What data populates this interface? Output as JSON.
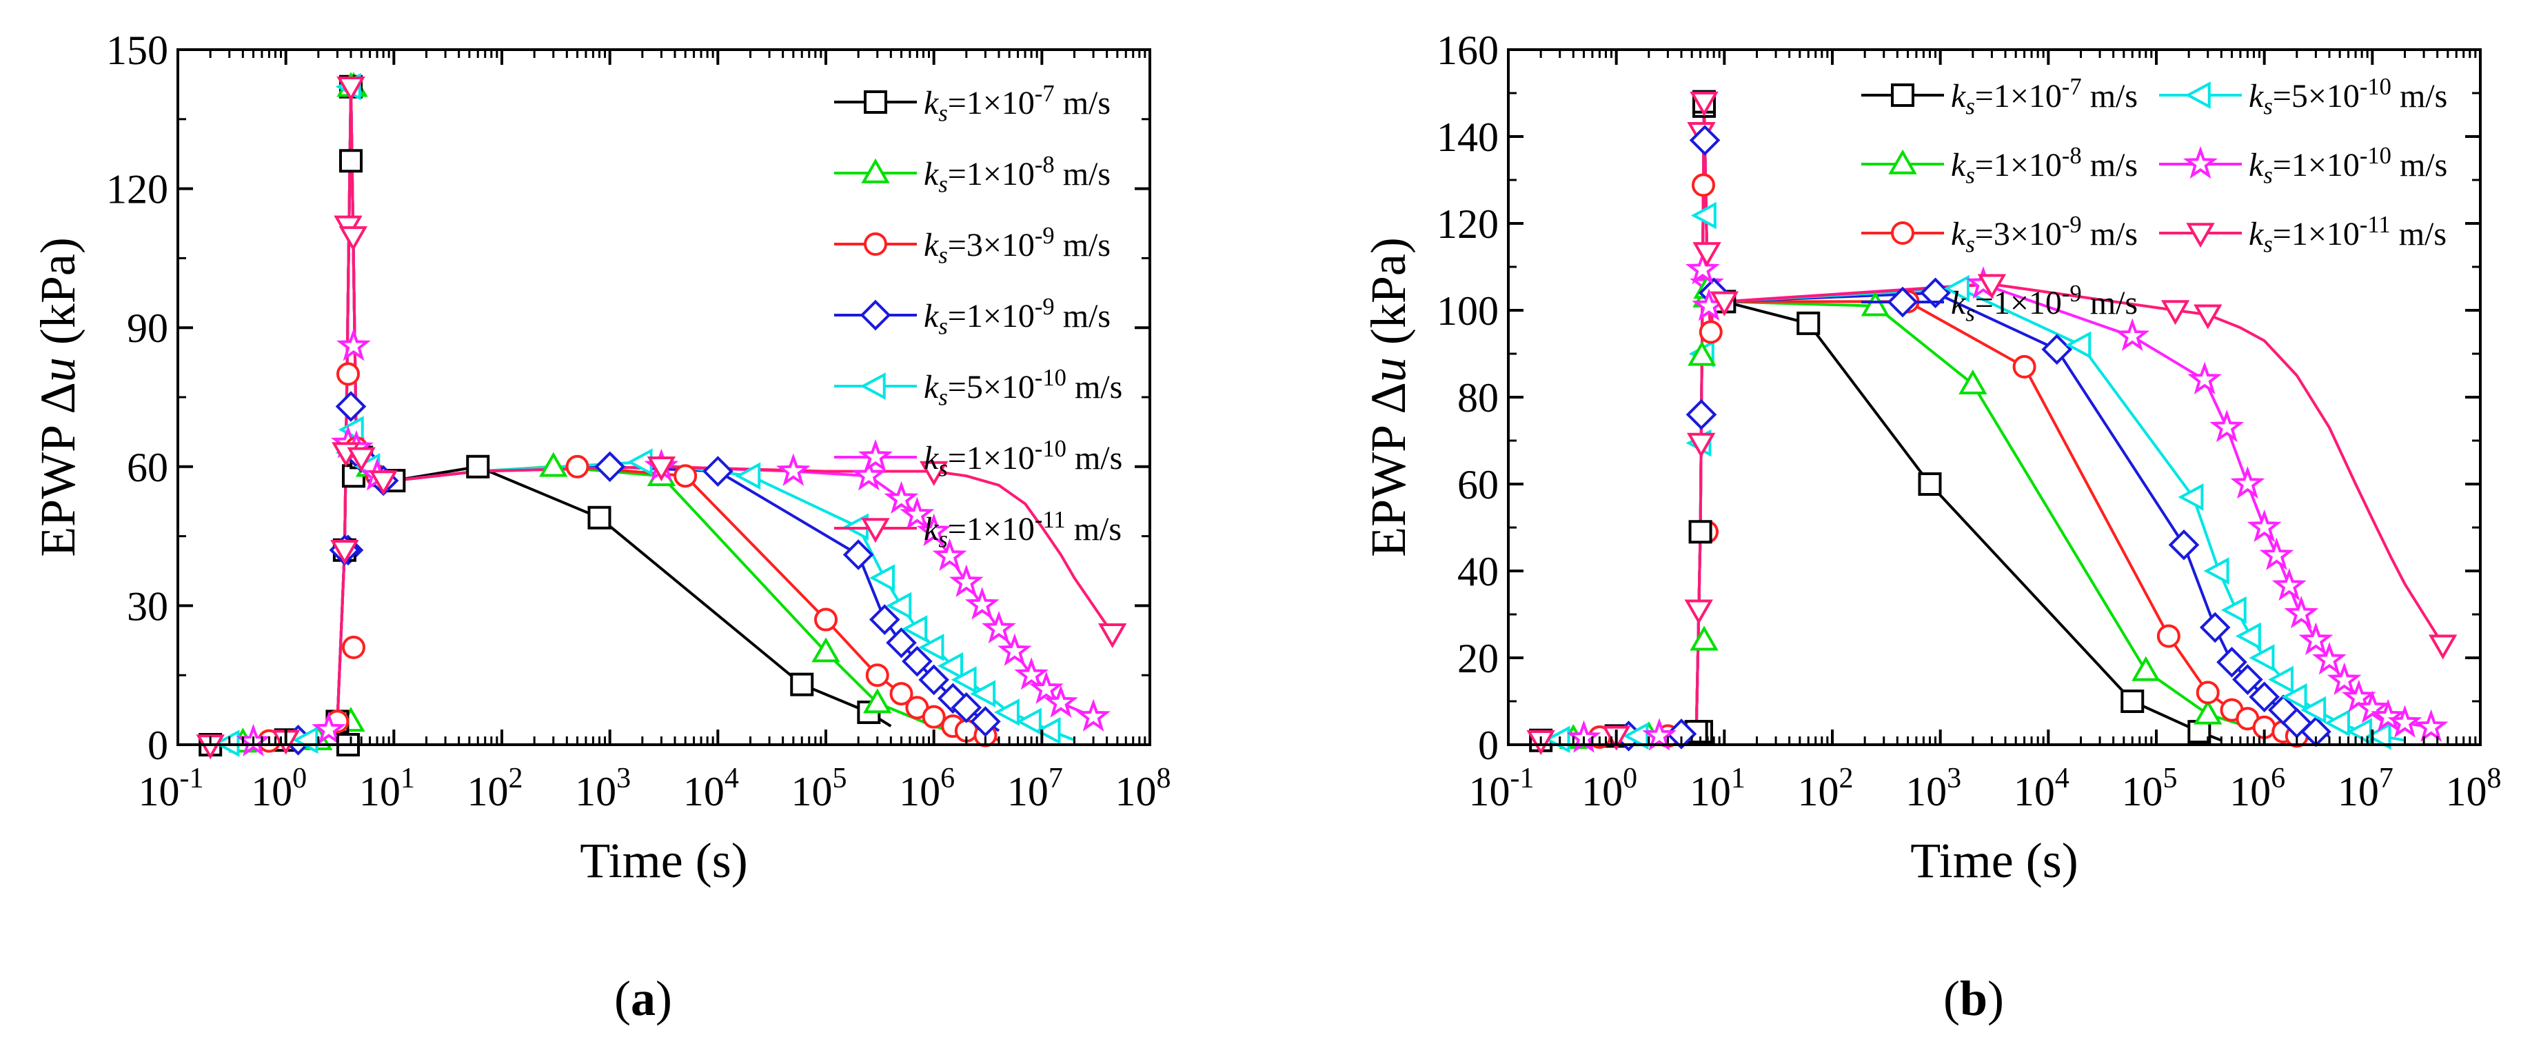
{
  "chart_data": [
    {
      "type": "line",
      "panel_label": "(a)",
      "panel_letter": "a",
      "xlabel": "Time (s)",
      "ylabel": "EPWP Δu (kPa)",
      "xscale": "log",
      "xlim_exp": [
        -1,
        8
      ],
      "ylim": [
        0,
        150
      ],
      "yticks": [
        0,
        30,
        60,
        90,
        120,
        150
      ],
      "legend_position": "top-right",
      "legend_columns": 1,
      "series": [
        {
          "name": "k_s=1×10^-7 m/s",
          "base": "1×10",
          "exp": "-7",
          "color": "#000000",
          "marker": "square",
          "x": [
            0.2,
            0.4,
            1,
            2,
            3,
            3.5,
            4,
            4.5,
            5,
            6,
            7,
            8,
            10,
            60,
            800,
            60000,
            250000,
            400000
          ],
          "y": [
            0,
            0.5,
            1,
            1,
            5,
            42,
            142,
            64,
            62,
            60,
            58,
            57,
            57,
            60,
            49,
            13,
            7,
            4
          ],
          "marker_x": [
            0.2,
            1,
            3,
            3.5,
            4,
            5,
            10,
            60,
            800,
            60000,
            250000
          ]
        },
        {
          "name": "k_s=1×10^-8 m/s",
          "base": "1×10",
          "exp": "-8",
          "color": "#00e000",
          "marker": "triangle-up",
          "x": [
            0.2,
            0.4,
            1,
            2,
            3,
            3.5,
            4,
            4.5,
            5,
            6,
            7,
            8,
            10,
            60,
            300,
            3000,
            100000,
            300000,
            1000000,
            2000000,
            3000000
          ],
          "y": [
            0,
            0.5,
            1,
            1,
            5,
            42,
            142,
            64,
            62,
            60,
            58,
            57,
            57,
            59,
            60,
            58,
            20,
            9,
            4,
            2,
            1
          ],
          "marker_x": [
            0.4,
            2,
            4,
            6,
            300,
            3000,
            100000,
            300000
          ]
        },
        {
          "name": "k_s=3×10^-9 m/s",
          "base": "3×10",
          "exp": "-9",
          "color": "#ff2020",
          "marker": "circle",
          "x": [
            0.2,
            0.4,
            1,
            2,
            3,
            3.5,
            4,
            4.5,
            5,
            6,
            7,
            8,
            10,
            60,
            500,
            5000,
            100000,
            300000,
            500000,
            700000,
            1000000,
            1500000,
            2000000,
            3000000,
            4000000
          ],
          "y": [
            0,
            0.5,
            1,
            1,
            5,
            42,
            142,
            64,
            62,
            60,
            58,
            57,
            57,
            59,
            60,
            58,
            27,
            15,
            11,
            8,
            6,
            4,
            3,
            2,
            1
          ],
          "marker_x": [
            0.7,
            3,
            4.5,
            7,
            500,
            5000,
            100000,
            300000,
            500000,
            700000,
            1000000,
            1500000,
            2000000,
            3000000
          ]
        },
        {
          "name": "k_s=1×10^-9 m/s",
          "base": "1×10",
          "exp": "-9",
          "color": "#1a1adc",
          "marker": "diamond",
          "x": [
            0.2,
            0.4,
            1,
            2,
            3,
            3.5,
            4,
            4.5,
            5,
            6,
            7,
            8,
            10,
            60,
            1000,
            10000,
            200000,
            350000,
            500000,
            700000,
            1000000,
            1500000,
            2000000,
            3000000,
            4000000
          ],
          "y": [
            0,
            0.5,
            1,
            1,
            5,
            42,
            142,
            64,
            62,
            60,
            58,
            57,
            57,
            59,
            60,
            59,
            41,
            27,
            22,
            18,
            14,
            10,
            8,
            5,
            3
          ],
          "marker_x": [
            1.3,
            3.5,
            5,
            8,
            1000,
            10000,
            200000,
            350000,
            500000,
            700000,
            1000000,
            1500000,
            2000000,
            3000000
          ]
        },
        {
          "name": "k_s=5×10^-10 m/s",
          "base": "5×10",
          "exp": "-10",
          "color": "#00e5e5",
          "marker": "triangle-left",
          "x": [
            0.2,
            0.4,
            1,
            2,
            3,
            3.5,
            4,
            4.5,
            5,
            6,
            7,
            8,
            10,
            60,
            2000,
            20000,
            200000,
            350000,
            500000,
            700000,
            1000000,
            1500000,
            2000000,
            3000000,
            5000000,
            8000000,
            12000000,
            20000000
          ],
          "y": [
            0,
            0.5,
            1,
            1,
            5,
            42,
            142,
            64,
            62,
            60,
            58,
            57,
            57,
            59,
            61,
            58,
            47,
            36,
            30,
            25,
            21,
            17,
            14,
            11,
            7,
            5,
            3,
            1
          ],
          "marker_x": [
            0.3,
            1.6,
            4,
            6,
            2000,
            20000,
            200000,
            350000,
            500000,
            700000,
            1000000,
            1500000,
            2000000,
            3000000,
            5000000,
            8000000,
            12000000
          ]
        },
        {
          "name": "k_s=1×10^-10 m/s",
          "base": "1×10",
          "exp": "-10",
          "color": "#ff22ff",
          "marker": "star",
          "x": [
            0.2,
            0.4,
            1,
            2,
            3,
            3.5,
            4,
            4.5,
            5,
            6,
            7,
            8,
            10,
            60,
            3000,
            50000,
            250000,
            500000,
            1000000,
            2000000,
            4000000,
            8000000,
            15000000,
            30000000
          ],
          "y": [
            0,
            0.5,
            1,
            1,
            5,
            42,
            142,
            64,
            62,
            60,
            58,
            57,
            57,
            59,
            60,
            59,
            58,
            53,
            46,
            35,
            25,
            15,
            9,
            6
          ],
          "marker_x": [
            0.5,
            2.5,
            4.5,
            7,
            3000,
            50000,
            250000,
            500000,
            700000,
            1000000,
            1400000,
            2000000,
            2800000,
            4000000,
            5600000,
            8000000,
            11000000,
            15000000,
            30000000
          ]
        },
        {
          "name": "k_s=1×10^-11 m/s",
          "base": "1×10",
          "exp": "-11",
          "color": "#ff1a75",
          "marker": "triangle-down",
          "x": [
            0.2,
            0.4,
            1,
            2,
            3,
            3.5,
            4,
            4.5,
            5,
            6,
            7,
            8,
            10,
            60,
            3000,
            100000,
            1000000,
            2000000,
            4000000,
            7000000,
            10000000,
            15000000,
            20000000,
            30000000,
            45000000
          ],
          "y": [
            0,
            0.5,
            1,
            1,
            5,
            42,
            142,
            64,
            62,
            60,
            58,
            57,
            57,
            59,
            60,
            59,
            59,
            58,
            56,
            52,
            47,
            41,
            36,
            30,
            24
          ],
          "marker_x": [
            0.2,
            1,
            3.5,
            3.6,
            4,
            4.2,
            5,
            8,
            3000,
            1000000,
            45000000
          ]
        }
      ],
      "spike_markers_y": [
        0,
        5,
        21,
        42,
        63,
        86,
        112,
        126,
        142,
        80,
        73,
        68,
        65,
        62,
        58
      ]
    },
    {
      "type": "line",
      "panel_label": "(b)",
      "panel_letter": "b",
      "xlabel": "Time (s)",
      "ylabel": "EPWP Δu (kPa)",
      "xscale": "log",
      "xlim_exp": [
        -1,
        8
      ],
      "ylim": [
        0,
        160
      ],
      "yticks": [
        0,
        20,
        40,
        60,
        80,
        100,
        120,
        140,
        160
      ],
      "legend_position": "top-right",
      "legend_columns": 2,
      "series": [
        {
          "name": "k_s=1×10^-7 m/s",
          "base": "1×10",
          "exp": "-7",
          "color": "#000000",
          "marker": "square",
          "x": [
            0.2,
            0.5,
            1,
            3,
            5.5,
            6,
            6.5,
            7,
            7.5,
            8,
            10,
            60,
            800,
            60000,
            250000,
            400000
          ],
          "y": [
            1,
            1.5,
            2,
            2,
            3,
            49,
            148,
            105,
            95,
            104,
            102,
            97,
            60,
            10,
            3,
            1
          ],
          "marker_x": [
            0.2,
            1,
            5.5,
            6,
            6.5,
            10,
            60,
            800,
            60000,
            250000
          ]
        },
        {
          "name": "k_s=1×10^-8 m/s",
          "base": "1×10",
          "exp": "-8",
          "color": "#00e000",
          "marker": "triangle-up",
          "x": [
            0.2,
            0.5,
            1,
            3,
            5.5,
            6,
            6.5,
            7,
            7.5,
            8,
            10,
            250,
            2000,
            80000,
            300000,
            1000000,
            2000000
          ],
          "y": [
            1,
            1.5,
            2,
            2,
            3,
            49,
            148,
            105,
            95,
            104,
            102,
            101,
            83,
            17,
            7,
            3,
            1
          ],
          "marker_x": [
            0.4,
            2,
            6.2,
            7,
            250,
            2000,
            80000,
            300000
          ]
        },
        {
          "name": "k_s=3×10^-9 m/s",
          "base": "3×10",
          "exp": "-9",
          "color": "#ff2020",
          "marker": "circle",
          "x": [
            0.2,
            0.5,
            1,
            3,
            5.5,
            6,
            6.5,
            7,
            7.5,
            8,
            10,
            500,
            6000,
            130000,
            300000,
            500000,
            700000,
            1000000,
            1500000,
            2000000,
            3000000
          ],
          "y": [
            1,
            1.5,
            2,
            2,
            3,
            49,
            148,
            105,
            95,
            104,
            102,
            102,
            87,
            25,
            12,
            8,
            6,
            4,
            3,
            2,
            1
          ],
          "marker_x": [
            0.7,
            3,
            6.4,
            7.5,
            500,
            6000,
            130000,
            300000,
            500000,
            700000,
            1000000,
            1500000,
            2000000
          ]
        },
        {
          "name": "k_s=1×10^-9 m/s",
          "base": "1×10",
          "exp": "-9",
          "color": "#1a1adc",
          "marker": "diamond",
          "x": [
            0.2,
            0.5,
            1,
            3,
            5.5,
            6,
            6.5,
            7,
            7.5,
            8,
            10,
            900,
            12000,
            180000,
            350000,
            500000,
            700000,
            1000000,
            1500000,
            2000000,
            3000000,
            4000000
          ],
          "y": [
            1,
            1.5,
            2,
            2,
            3,
            49,
            148,
            105,
            95,
            104,
            102,
            104,
            91,
            46,
            27,
            19,
            15,
            11,
            8,
            5,
            3,
            2
          ],
          "marker_x": [
            1.3,
            4,
            6.6,
            8,
            900,
            12000,
            180000,
            350000,
            500000,
            700000,
            1000000,
            1500000,
            2000000,
            3000000
          ]
        },
        {
          "name": "k_s=5×10^-10 m/s",
          "base": "5×10",
          "exp": "-10",
          "color": "#00e5e5",
          "marker": "triangle-left",
          "x": [
            0.2,
            0.5,
            1,
            3,
            5.5,
            6,
            6.5,
            7,
            7.5,
            8,
            10,
            1500,
            20000,
            220000,
            380000,
            550000,
            750000,
            1000000,
            1500000,
            2000000,
            3000000,
            5000000,
            8000000,
            12000000,
            20000000
          ],
          "y": [
            1,
            1.5,
            2,
            2,
            3,
            49,
            148,
            105,
            95,
            104,
            102,
            105,
            92,
            57,
            40,
            31,
            25,
            20,
            15,
            11,
            8,
            5,
            3,
            2,
            1
          ],
          "marker_x": [
            0.3,
            1.6,
            6.1,
            6.8,
            1500,
            20000,
            220000,
            380000,
            550000,
            750000,
            1000000,
            1500000,
            2000000,
            3000000,
            5000000,
            8000000,
            12000000
          ]
        },
        {
          "name": "k_s=1×10^-10 m/s",
          "base": "1×10",
          "exp": "-10",
          "color": "#ff22ff",
          "marker": "star",
          "x": [
            0.2,
            0.5,
            1,
            3,
            5.5,
            6,
            6.5,
            7,
            7.5,
            8,
            10,
            2500,
            60000,
            280000,
            450000,
            700000,
            1000000,
            1500000,
            2000000,
            3000000,
            5000000,
            8000000,
            12000000,
            20000000,
            35000000
          ],
          "y": [
            1,
            1.5,
            2,
            2,
            3,
            49,
            148,
            105,
            95,
            104,
            102,
            106,
            94,
            84,
            73,
            60,
            50,
            40,
            32,
            24,
            16,
            10,
            7,
            5,
            4
          ],
          "marker_x": [
            0.5,
            2.5,
            6.3,
            7.2,
            2500,
            60000,
            280000,
            450000,
            700000,
            1000000,
            1300000,
            1700000,
            2200000,
            3000000,
            4000000,
            5500000,
            7500000,
            10000000,
            14000000,
            20000000,
            35000000
          ]
        },
        {
          "name": "k_s=1×10^-11 m/s",
          "base": "1×10",
          "exp": "-11",
          "color": "#ff1a75",
          "marker": "triangle-down",
          "x": [
            0.2,
            0.5,
            1,
            3,
            5.5,
            6,
            6.5,
            7,
            7.5,
            8,
            10,
            3000,
            150000,
            300000,
            600000,
            1000000,
            2000000,
            4000000,
            7000000,
            10000000,
            15000000,
            20000000,
            30000000,
            45000000
          ],
          "y": [
            1,
            1.5,
            2,
            2,
            3,
            49,
            148,
            105,
            95,
            104,
            102,
            106,
            100,
            99,
            96,
            93,
            85,
            73,
            60,
            52,
            43,
            37,
            30,
            23
          ],
          "marker_x": [
            0.2,
            1,
            5.8,
            6.1,
            6.5,
            6.9,
            10,
            3000,
            150000,
            300000,
            45000000
          ]
        }
      ],
      "spike_markers_y": [
        3,
        24,
        49,
        76,
        90,
        106,
        141,
        147,
        103
      ]
    }
  ]
}
